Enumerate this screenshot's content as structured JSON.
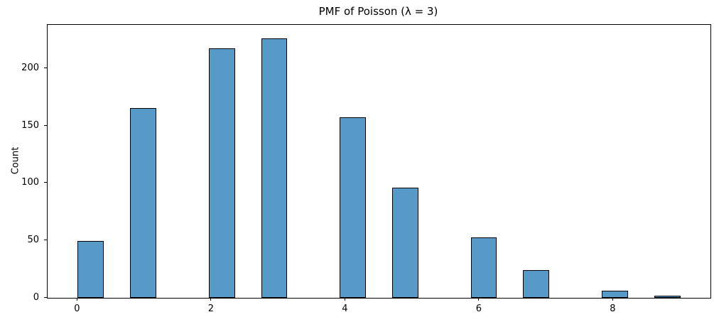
{
  "chart_data": {
    "type": "bar",
    "title": "PMF of Poisson (λ = 3)",
    "xlabel": "",
    "ylabel": "Count",
    "categories": [
      0,
      1,
      2,
      3,
      4,
      5,
      6,
      7,
      8,
      9
    ],
    "values": [
      50,
      166,
      218,
      227,
      158,
      96,
      53,
      24,
      6,
      2
    ],
    "bin_lefts": [
      0.0,
      0.783,
      1.957,
      2.739,
      3.913,
      4.696,
      5.87,
      6.652,
      7.826,
      8.609
    ],
    "bar_width": 0.391,
    "xlim": [
      -0.45,
      9.45
    ],
    "ylim": [
      0,
      238.5
    ],
    "x_ticks": [
      0,
      2,
      4,
      6,
      8
    ],
    "y_ticks": [
      0,
      50,
      100,
      150,
      200
    ],
    "grid": false,
    "legend_position": "none",
    "bar_fill": "#5799C7",
    "bar_edge": "#000000",
    "spine_color": "#000000"
  }
}
